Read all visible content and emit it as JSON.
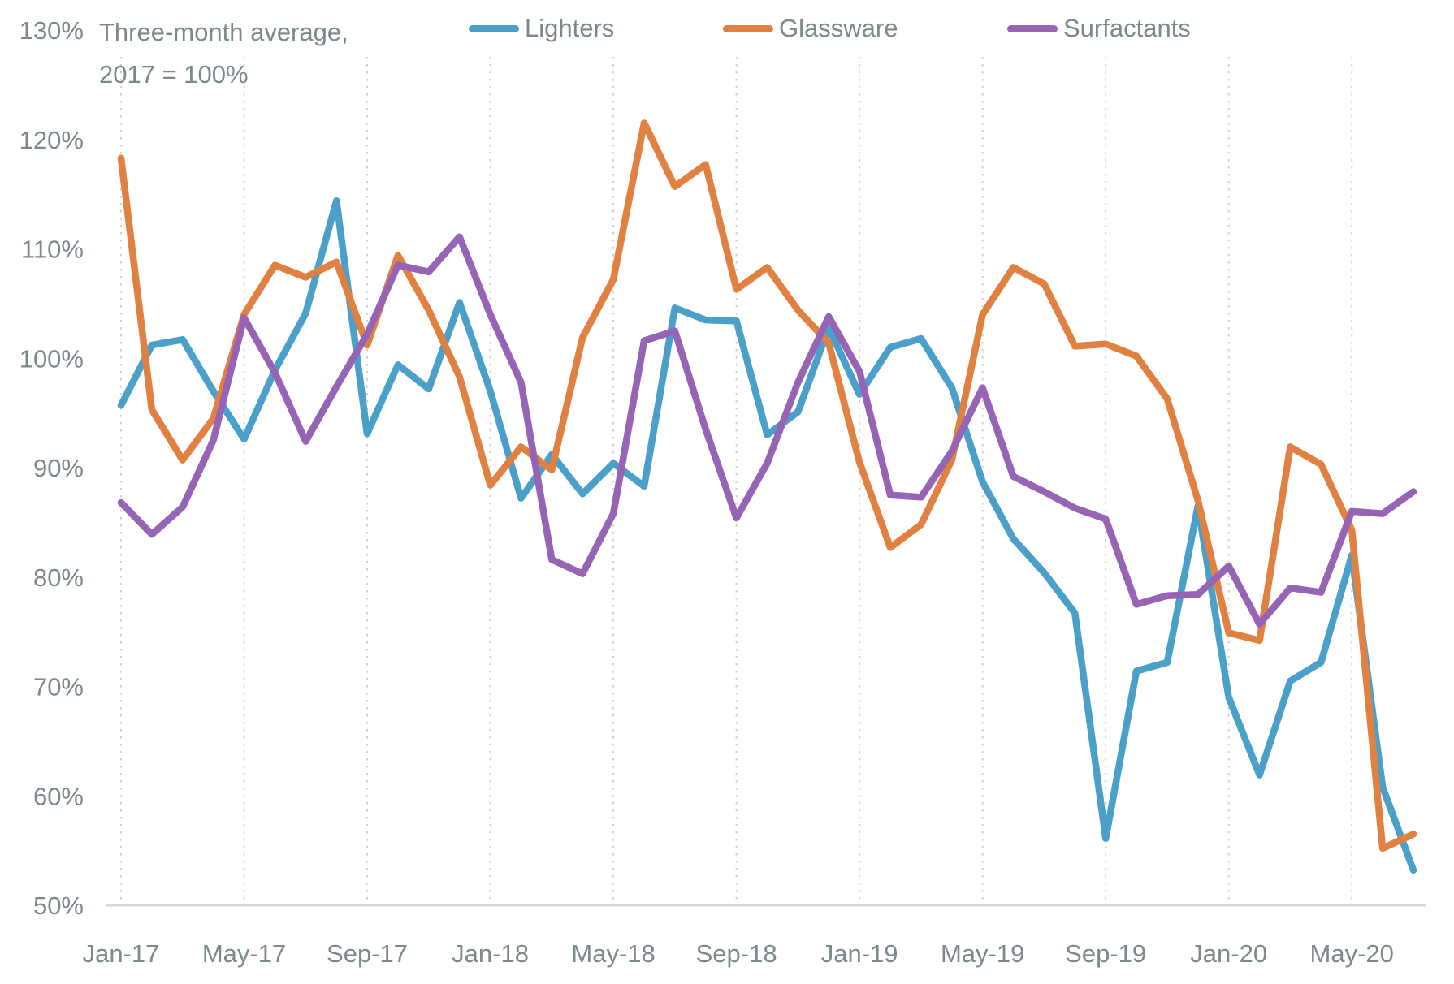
{
  "header": {
    "title_line1": "Three-month average,",
    "title_line2": "2017 = 100%"
  },
  "axis": {
    "y_tick_labels": [
      "130%",
      "120%",
      "110%",
      "100%",
      "90%",
      "80%",
      "70%",
      "60%",
      "50%"
    ],
    "x_tick_labels": [
      "Jan-17",
      "May-17",
      "Sep-17",
      "Jan-18",
      "May-18",
      "Sep-18",
      "Jan-19",
      "May-19",
      "Sep-19",
      "Jan-20",
      "May-20"
    ]
  },
  "colors": {
    "lighters": "#4BA0C9",
    "glassware": "#E08141",
    "surfactants": "#9763B4",
    "text_gray": "#7b898c",
    "gridline": "#cfcfcf",
    "axis_line": "#d8d8d8",
    "background": "#ffffff"
  },
  "chart_data": {
    "type": "line",
    "title": "Three-month average,",
    "subtitle": "2017 = 100%",
    "xlabel": "",
    "ylabel": "",
    "ylim": [
      50,
      130
    ],
    "yticks": [
      130,
      120,
      110,
      100,
      90,
      80,
      70,
      60,
      50
    ],
    "grid": "vertical-dotted",
    "legend_position": "top",
    "x": [
      "Jan-17",
      "Feb-17",
      "Mar-17",
      "Apr-17",
      "May-17",
      "Jun-17",
      "Jul-17",
      "Aug-17",
      "Sep-17",
      "Oct-17",
      "Nov-17",
      "Dec-17",
      "Jan-18",
      "Feb-18",
      "Mar-18",
      "Apr-18",
      "May-18",
      "Jun-18",
      "Jul-18",
      "Aug-18",
      "Sep-18",
      "Oct-18",
      "Nov-18",
      "Dec-18",
      "Jan-19",
      "Feb-19",
      "Mar-19",
      "Apr-19",
      "May-19",
      "Jun-19",
      "Jul-19",
      "Aug-19",
      "Sep-19",
      "Oct-19",
      "Nov-19",
      "Dec-19",
      "Jan-20",
      "Feb-20",
      "Mar-20",
      "Apr-20",
      "May-20",
      "Jun-20",
      "Jul-20"
    ],
    "x_major_ticks": [
      "Jan-17",
      "May-17",
      "Sep-17",
      "Jan-18",
      "May-18",
      "Sep-18",
      "Jan-19",
      "May-19",
      "Sep-19",
      "Jan-20",
      "May-20"
    ],
    "series": [
      {
        "name": "Lighters",
        "color": "#4BA0C9",
        "values": [
          95.7,
          101.2,
          101.7,
          97.0,
          92.6,
          98.9,
          104.1,
          114.4,
          93.1,
          99.4,
          97.2,
          105.1,
          97.0,
          87.2,
          91.2,
          87.6,
          90.4,
          88.3,
          104.6,
          103.5,
          103.4,
          93.0,
          95.1,
          102.8,
          96.7,
          101.0,
          101.8,
          97.3,
          88.7,
          83.5,
          80.4,
          76.7,
          56.1,
          71.4,
          72.2,
          86.5,
          69.0,
          61.9,
          70.5,
          72.2,
          82.0,
          60.8,
          53.2
        ]
      },
      {
        "name": "Glassware",
        "color": "#E08141",
        "values": [
          118.3,
          95.3,
          90.7,
          94.5,
          104.0,
          108.5,
          107.4,
          108.8,
          101.2,
          109.4,
          104.4,
          98.3,
          88.4,
          91.9,
          89.8,
          101.9,
          107.2,
          121.5,
          115.7,
          117.7,
          106.3,
          108.3,
          104.4,
          101.4,
          90.5,
          82.7,
          84.8,
          90.7,
          104.0,
          108.3,
          106.8,
          101.1,
          101.3,
          100.2,
          96.3,
          87.0,
          74.9,
          74.2,
          91.9,
          90.3,
          84.3,
          55.2,
          56.5
        ]
      },
      {
        "name": "Surfactants",
        "color": "#9763B4",
        "values": [
          86.8,
          83.9,
          86.4,
          92.5,
          103.7,
          98.7,
          92.4,
          97.4,
          102.2,
          108.5,
          107.9,
          111.1,
          104.0,
          97.8,
          81.6,
          80.3,
          85.8,
          101.6,
          102.5,
          93.5,
          85.4,
          90.4,
          97.8,
          103.8,
          98.8,
          87.5,
          87.3,
          91.5,
          97.3,
          89.2,
          87.8,
          86.3,
          85.3,
          77.5,
          78.3,
          78.4,
          81.0,
          75.7,
          79.0,
          78.6,
          86.0,
          85.8,
          87.8
        ]
      }
    ]
  }
}
